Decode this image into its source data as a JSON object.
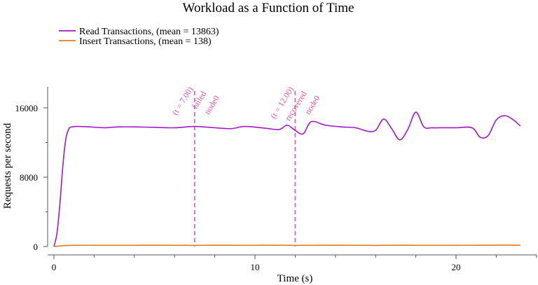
{
  "chart_data": {
    "type": "line",
    "title": "Workload as a Function of Time",
    "xlabel": "Time (s)",
    "ylabel": "Requests per second",
    "xlim": [
      0,
      24
    ],
    "ylim": [
      0,
      18000
    ],
    "xticks_major": [
      0,
      10,
      20
    ],
    "xtick_labels": [
      "0",
      "10",
      "20"
    ],
    "xticks_minor": [
      2,
      4,
      6,
      8,
      12,
      14,
      16,
      18,
      22,
      24
    ],
    "yticks_major": [
      0,
      8000,
      16000
    ],
    "ytick_labels": [
      "0",
      "8000",
      "16000"
    ],
    "yticks_minor": [
      4000,
      12000
    ],
    "grid": false,
    "legend_position": "top-left",
    "series": [
      {
        "name": "Read Transactions, (mean = 13863)",
        "color": "#a319c9",
        "x": [
          0,
          0.15,
          0.3,
          0.45,
          0.6,
          0.75,
          0.9,
          1.2,
          1.8,
          2.5,
          3.2,
          4.0,
          5.0,
          6.0,
          7.0,
          8.0,
          8.8,
          9.5,
          10.5,
          11.2,
          11.6,
          12.0,
          12.4,
          12.8,
          13.5,
          14.3,
          15.0,
          15.6,
          16.0,
          16.4,
          16.8,
          17.2,
          17.6,
          18.0,
          18.4,
          18.8,
          19.2,
          20.0,
          20.8,
          21.2,
          21.6,
          22.0,
          22.4,
          22.8,
          23.2
        ],
        "y": [
          0,
          1500,
          5000,
          9500,
          12500,
          13600,
          13800,
          13850,
          13800,
          13700,
          13800,
          13800,
          13750,
          13700,
          13850,
          13700,
          13600,
          13850,
          13650,
          13500,
          14000,
          13400,
          13000,
          14400,
          14000,
          13800,
          13700,
          13300,
          13400,
          14700,
          13600,
          12300,
          13500,
          15500,
          13800,
          13700,
          13700,
          13700,
          13700,
          12600,
          12800,
          14600,
          15100,
          14700,
          13900
        ]
      },
      {
        "name": "Insert Transactions, (mean = 138)",
        "color": "#e07b1a",
        "x": [
          0,
          0.3,
          0.6,
          1.0,
          2.0,
          3.0,
          4.0,
          5.0,
          6.0,
          7.0,
          8.0,
          9.0,
          10.0,
          11.0,
          12.0,
          13.0,
          14.0,
          15.0,
          16.0,
          17.0,
          18.0,
          19.0,
          20.0,
          21.0,
          22.0,
          22.6,
          23.2
        ],
        "y": [
          0,
          60,
          110,
          140,
          140,
          135,
          140,
          145,
          140,
          130,
          150,
          135,
          140,
          145,
          130,
          140,
          145,
          140,
          130,
          145,
          140,
          135,
          140,
          145,
          150,
          160,
          140
        ]
      }
    ],
    "annotations": [
      {
        "x": 7.0,
        "lines": [
          "node0",
          "failed",
          "(t = 7.00)"
        ]
      },
      {
        "x": 12.0,
        "lines": [
          "node0",
          "recovered",
          "(t = 12.00)"
        ]
      }
    ],
    "annotation_color": "#e8559c"
  }
}
